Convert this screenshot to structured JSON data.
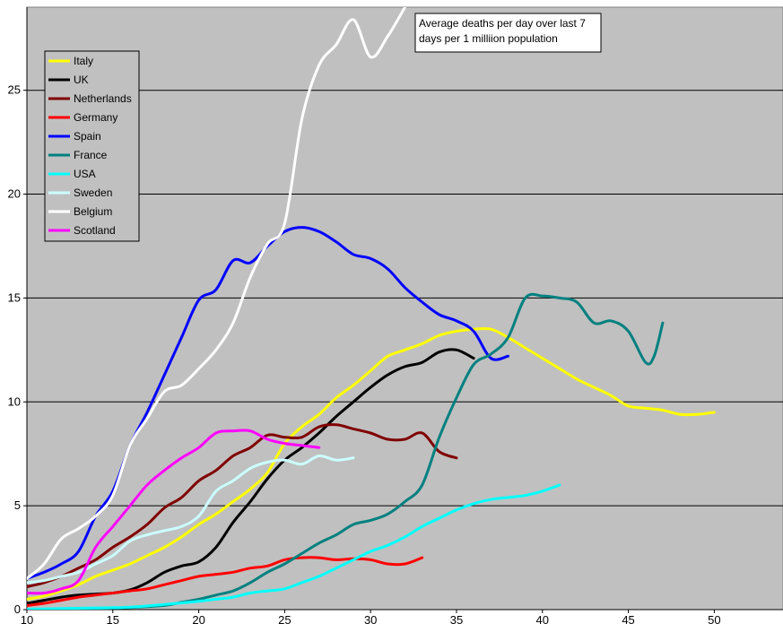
{
  "chart_data": {
    "type": "line",
    "title_lines": [
      "Average deaths per day over last 7",
      "days per 1 milliion population"
    ],
    "xlabel": "",
    "ylabel": "",
    "xlim": [
      10,
      54
    ],
    "ylim": [
      0,
      29
    ],
    "x_ticks": [
      10,
      15,
      20,
      25,
      30,
      35,
      40,
      45,
      50
    ],
    "y_ticks": [
      0,
      5,
      10,
      15,
      20,
      25
    ],
    "grid": "horizontal",
    "legend_position": "top-left",
    "background_color": "#c0c0c0",
    "series": [
      {
        "name": "Italy",
        "color": "#ffff00",
        "points": [
          [
            10,
            0.5
          ],
          [
            11,
            0.65
          ],
          [
            12,
            0.9
          ],
          [
            13,
            1.2
          ],
          [
            14,
            1.6
          ],
          [
            15,
            1.9
          ],
          [
            16,
            2.2
          ],
          [
            17,
            2.6
          ],
          [
            18,
            3.0
          ],
          [
            19,
            3.5
          ],
          [
            20,
            4.1
          ],
          [
            21,
            4.6
          ],
          [
            22,
            5.2
          ],
          [
            23,
            5.8
          ],
          [
            24,
            6.6
          ],
          [
            25,
            8.0
          ],
          [
            26,
            8.8
          ],
          [
            27,
            9.4
          ],
          [
            28,
            10.2
          ],
          [
            29,
            10.8
          ],
          [
            30,
            11.5
          ],
          [
            31,
            12.2
          ],
          [
            32,
            12.5
          ],
          [
            33,
            12.8
          ],
          [
            34,
            13.2
          ],
          [
            35,
            13.4
          ],
          [
            36,
            13.5
          ],
          [
            37,
            13.5
          ],
          [
            38,
            13.1
          ],
          [
            39,
            12.6
          ],
          [
            40,
            12.1
          ],
          [
            41,
            11.6
          ],
          [
            42,
            11.1
          ],
          [
            43,
            10.7
          ],
          [
            44,
            10.3
          ],
          [
            45,
            9.8
          ],
          [
            46,
            9.7
          ],
          [
            47,
            9.6
          ],
          [
            48,
            9.4
          ],
          [
            49,
            9.4
          ],
          [
            50,
            9.5
          ]
        ]
      },
      {
        "name": "UK",
        "color": "#000000",
        "points": [
          [
            10,
            0.3
          ],
          [
            11,
            0.45
          ],
          [
            12,
            0.6
          ],
          [
            13,
            0.7
          ],
          [
            14,
            0.75
          ],
          [
            15,
            0.8
          ],
          [
            16,
            0.95
          ],
          [
            17,
            1.3
          ],
          [
            18,
            1.8
          ],
          [
            19,
            2.1
          ],
          [
            20,
            2.3
          ],
          [
            21,
            3.0
          ],
          [
            22,
            4.2
          ],
          [
            23,
            5.2
          ],
          [
            24,
            6.3
          ],
          [
            25,
            7.2
          ],
          [
            26,
            7.8
          ],
          [
            27,
            8.5
          ],
          [
            28,
            9.3
          ],
          [
            29,
            10.0
          ],
          [
            30,
            10.7
          ],
          [
            31,
            11.3
          ],
          [
            32,
            11.7
          ],
          [
            33,
            11.9
          ],
          [
            34,
            12.4
          ],
          [
            35,
            12.5
          ],
          [
            36,
            12.1
          ]
        ]
      },
      {
        "name": "Netherlands",
        "color": "#800000",
        "points": [
          [
            10,
            1.1
          ],
          [
            11,
            1.3
          ],
          [
            12,
            1.6
          ],
          [
            13,
            2.0
          ],
          [
            14,
            2.4
          ],
          [
            15,
            3.0
          ],
          [
            16,
            3.5
          ],
          [
            17,
            4.1
          ],
          [
            18,
            4.9
          ],
          [
            19,
            5.4
          ],
          [
            20,
            6.2
          ],
          [
            21,
            6.7
          ],
          [
            22,
            7.4
          ],
          [
            23,
            7.8
          ],
          [
            24,
            8.4
          ],
          [
            25,
            8.3
          ],
          [
            26,
            8.3
          ],
          [
            27,
            8.8
          ],
          [
            28,
            8.9
          ],
          [
            29,
            8.7
          ],
          [
            30,
            8.5
          ],
          [
            31,
            8.2
          ],
          [
            32,
            8.2
          ],
          [
            33,
            8.5
          ],
          [
            34,
            7.6
          ],
          [
            35,
            7.3
          ]
        ]
      },
      {
        "name": "Germany",
        "color": "#ff0000",
        "points": [
          [
            10,
            0.2
          ],
          [
            11,
            0.3
          ],
          [
            12,
            0.45
          ],
          [
            13,
            0.6
          ],
          [
            14,
            0.7
          ],
          [
            15,
            0.8
          ],
          [
            16,
            0.9
          ],
          [
            17,
            1.0
          ],
          [
            18,
            1.2
          ],
          [
            19,
            1.4
          ],
          [
            20,
            1.6
          ],
          [
            21,
            1.7
          ],
          [
            22,
            1.8
          ],
          [
            23,
            2.0
          ],
          [
            24,
            2.1
          ],
          [
            25,
            2.4
          ],
          [
            26,
            2.5
          ],
          [
            27,
            2.5
          ],
          [
            28,
            2.4
          ],
          [
            29,
            2.45
          ],
          [
            30,
            2.4
          ],
          [
            31,
            2.2
          ],
          [
            32,
            2.2
          ],
          [
            33,
            2.5
          ]
        ]
      },
      {
        "name": "Spain",
        "color": "#0000ff",
        "points": [
          [
            10,
            1.5
          ],
          [
            11,
            1.8
          ],
          [
            12,
            2.2
          ],
          [
            13,
            2.8
          ],
          [
            14,
            4.5
          ],
          [
            15,
            5.7
          ],
          [
            16,
            7.9
          ],
          [
            17,
            9.5
          ],
          [
            18,
            11.3
          ],
          [
            19,
            13.1
          ],
          [
            20,
            14.9
          ],
          [
            21,
            15.4
          ],
          [
            22,
            16.8
          ],
          [
            23,
            16.7
          ],
          [
            24,
            17.5
          ],
          [
            25,
            18.2
          ],
          [
            26,
            18.4
          ],
          [
            27,
            18.2
          ],
          [
            28,
            17.7
          ],
          [
            29,
            17.1
          ],
          [
            30,
            16.9
          ],
          [
            31,
            16.4
          ],
          [
            32,
            15.5
          ],
          [
            33,
            14.8
          ],
          [
            34,
            14.2
          ],
          [
            35,
            13.9
          ],
          [
            36,
            13.4
          ],
          [
            37,
            12.1
          ],
          [
            38,
            12.2
          ]
        ]
      },
      {
        "name": "France",
        "color": "#008080",
        "points": [
          [
            10,
            0.0
          ],
          [
            12,
            0.02
          ],
          [
            14,
            0.05
          ],
          [
            16,
            0.1
          ],
          [
            18,
            0.2
          ],
          [
            19,
            0.35
          ],
          [
            20,
            0.5
          ],
          [
            21,
            0.7
          ],
          [
            22,
            0.9
          ],
          [
            23,
            1.3
          ],
          [
            24,
            1.8
          ],
          [
            25,
            2.2
          ],
          [
            26,
            2.7
          ],
          [
            27,
            3.2
          ],
          [
            28,
            3.6
          ],
          [
            29,
            4.1
          ],
          [
            30,
            4.3
          ],
          [
            31,
            4.6
          ],
          [
            32,
            5.2
          ],
          [
            33,
            6.0
          ],
          [
            34,
            8.3
          ],
          [
            35,
            10.2
          ],
          [
            36,
            11.8
          ],
          [
            37,
            12.3
          ],
          [
            38,
            13.1
          ],
          [
            39,
            15.0
          ],
          [
            40,
            15.1
          ],
          [
            41,
            15.0
          ],
          [
            42,
            14.8
          ],
          [
            43,
            13.8
          ],
          [
            44,
            13.9
          ],
          [
            45,
            13.4
          ],
          [
            46,
            11.9
          ],
          [
            46.5,
            12.2
          ],
          [
            47,
            13.8
          ]
        ]
      },
      {
        "name": "USA",
        "color": "#00ffff",
        "points": [
          [
            10,
            0.02
          ],
          [
            12,
            0.05
          ],
          [
            14,
            0.08
          ],
          [
            16,
            0.12
          ],
          [
            18,
            0.25
          ],
          [
            20,
            0.4
          ],
          [
            21,
            0.5
          ],
          [
            22,
            0.6
          ],
          [
            23,
            0.8
          ],
          [
            24,
            0.9
          ],
          [
            25,
            1.0
          ],
          [
            26,
            1.3
          ],
          [
            27,
            1.6
          ],
          [
            28,
            2.0
          ],
          [
            29,
            2.4
          ],
          [
            30,
            2.8
          ],
          [
            31,
            3.1
          ],
          [
            32,
            3.5
          ],
          [
            33,
            4.0
          ],
          [
            34,
            4.4
          ],
          [
            35,
            4.8
          ],
          [
            36,
            5.1
          ],
          [
            37,
            5.3
          ],
          [
            38,
            5.4
          ],
          [
            39,
            5.5
          ],
          [
            40,
            5.7
          ],
          [
            41,
            6.0
          ]
        ]
      },
      {
        "name": "Sweden",
        "color": "#ccffff",
        "points": [
          [
            10,
            1.3
          ],
          [
            11,
            1.4
          ],
          [
            12,
            1.6
          ],
          [
            13,
            1.8
          ],
          [
            14,
            2.2
          ],
          [
            15,
            2.6
          ],
          [
            16,
            3.3
          ],
          [
            17,
            3.6
          ],
          [
            18,
            3.8
          ],
          [
            19,
            4.0
          ],
          [
            20,
            4.5
          ],
          [
            21,
            5.7
          ],
          [
            22,
            6.2
          ],
          [
            23,
            6.8
          ],
          [
            24,
            7.1
          ],
          [
            25,
            7.2
          ],
          [
            26,
            7.0
          ],
          [
            27,
            7.4
          ],
          [
            28,
            7.2
          ],
          [
            29,
            7.3
          ]
        ]
      },
      {
        "name": "Belgium",
        "color": "#ffffff",
        "points": [
          [
            10,
            1.5
          ],
          [
            11,
            2.2
          ],
          [
            12,
            3.4
          ],
          [
            13,
            3.9
          ],
          [
            14,
            4.5
          ],
          [
            15,
            5.5
          ],
          [
            16,
            7.9
          ],
          [
            17,
            9.2
          ],
          [
            18,
            10.5
          ],
          [
            19,
            10.8
          ],
          [
            20,
            11.6
          ],
          [
            21,
            12.5
          ],
          [
            22,
            13.8
          ],
          [
            23,
            16.0
          ],
          [
            24,
            17.6
          ],
          [
            25,
            18.6
          ],
          [
            26,
            23.6
          ],
          [
            27,
            26.2
          ],
          [
            28,
            27.2
          ],
          [
            29,
            28.4
          ],
          [
            30,
            26.6
          ],
          [
            31,
            27.6
          ],
          [
            32,
            29.0
          ]
        ]
      },
      {
        "name": "Scotland",
        "color": "#ff00ff",
        "points": [
          [
            10,
            0.8
          ],
          [
            11,
            0.8
          ],
          [
            12,
            1.0
          ],
          [
            13,
            1.4
          ],
          [
            14,
            3.0
          ],
          [
            15,
            4.0
          ],
          [
            16,
            5.0
          ],
          [
            17,
            6.0
          ],
          [
            18,
            6.7
          ],
          [
            19,
            7.3
          ],
          [
            20,
            7.8
          ],
          [
            21,
            8.5
          ],
          [
            22,
            8.6
          ],
          [
            23,
            8.6
          ],
          [
            24,
            8.2
          ],
          [
            25,
            8.0
          ],
          [
            26,
            7.9
          ],
          [
            27,
            7.8
          ]
        ]
      }
    ]
  }
}
